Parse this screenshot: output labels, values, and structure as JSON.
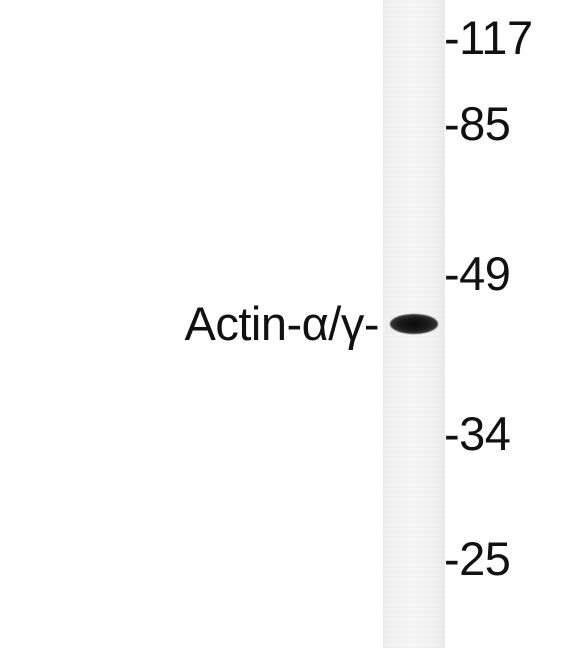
{
  "blot": {
    "protein_label": "Actin-α/γ-",
    "markers": [
      "-117",
      "-85",
      "-49",
      "-34",
      "-25"
    ]
  }
}
